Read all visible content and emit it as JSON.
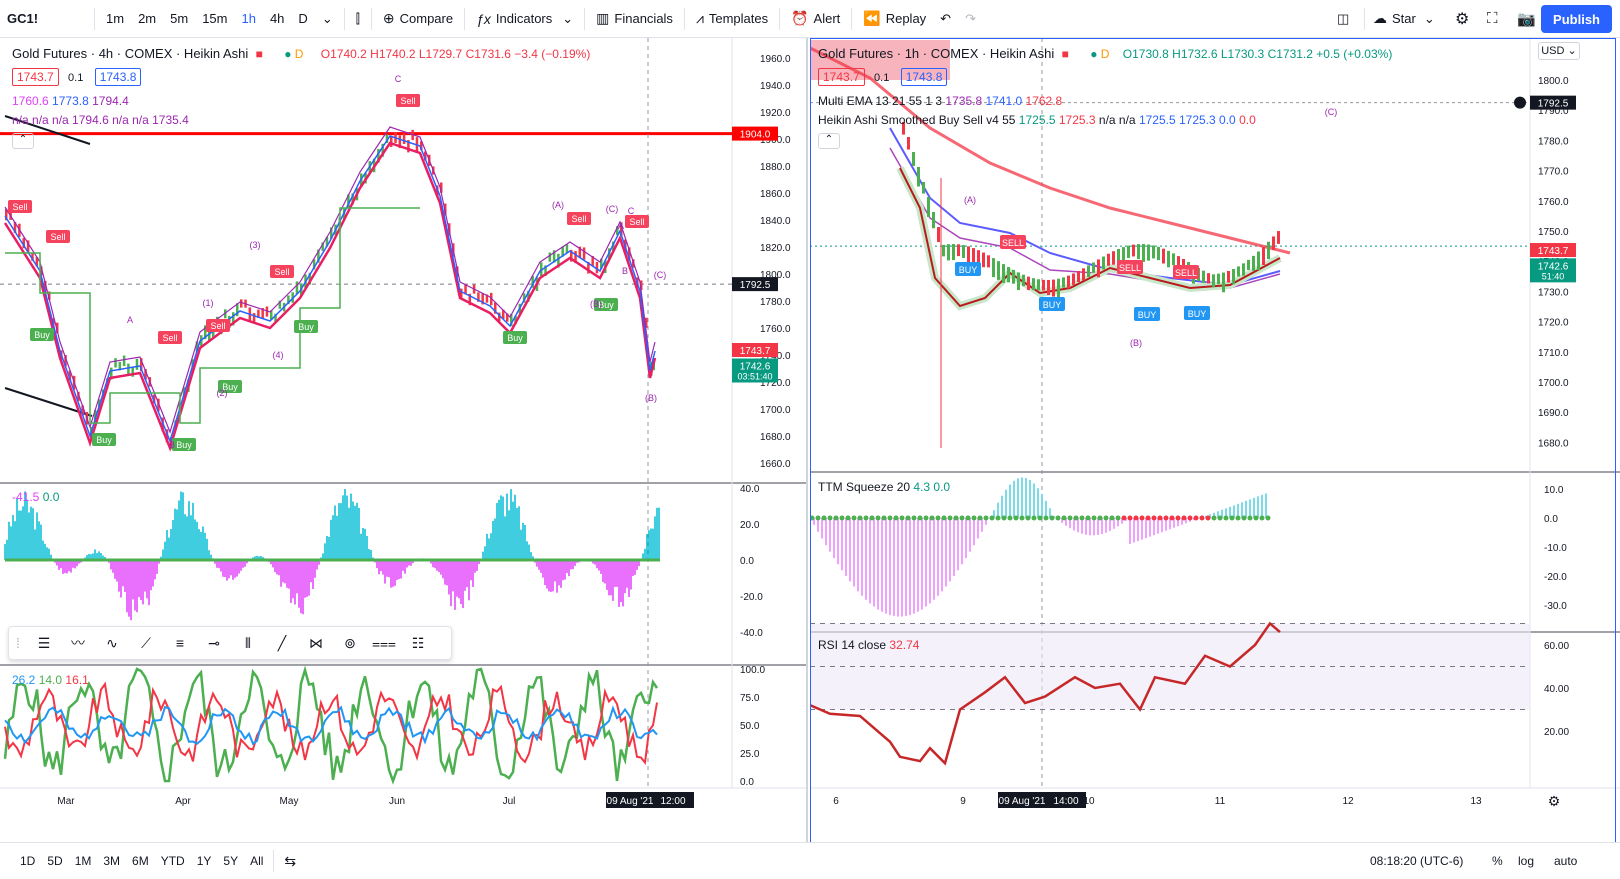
{
  "toolbar": {
    "symbol": "GC1!",
    "intervals": [
      "1m",
      "2m",
      "5m",
      "15m",
      "1h",
      "4h",
      "D"
    ],
    "active_interval": "1h",
    "compare": "Compare",
    "indicators": "Indicators",
    "financials": "Financials",
    "templates": "Templates",
    "alert": "Alert",
    "replay": "Replay",
    "star": "Star",
    "publish": "Publish"
  },
  "left_chart": {
    "title": "Gold Futures · 4h · COMEX · Heikin Ashi",
    "ohlc": "O1740.2 H1740.2 L1729.7 C1731.6 −3.4 (−0.19%)",
    "bid": "1743.7",
    "spread": "0.1",
    "ask": "1743.8",
    "ind1": [
      "1760.6",
      "1773.8",
      "1794.4"
    ],
    "ind2": "n/a n/a n/a 1794.6 n/a n/a 1735.4",
    "price_ticks": [
      "1960.0",
      "1940.0",
      "1920.0",
      "1900.0",
      "1880.0",
      "1860.0",
      "1840.0",
      "1820.0",
      "1800.0",
      "1780.0",
      "1760.0",
      "1740.0",
      "1720.0",
      "1700.0",
      "1680.0",
      "1660.0"
    ],
    "level_red": "1904.0",
    "level_dash": "1792.5",
    "last_price": "1743.7",
    "last_close": "1742.6",
    "countdown": "03:51:40",
    "osc1_values": [
      "-41.5",
      "0.0"
    ],
    "osc1_ticks": [
      "40.0",
      "20.0",
      "0.0",
      "-20.0",
      "-40.0"
    ],
    "osc2_values": [
      "26.2",
      "14.0",
      "16.1"
    ],
    "osc2_ticks": [
      "100.0",
      "75.0",
      "50.0",
      "25.0",
      "0.0"
    ],
    "x_labels": [
      "Mar",
      "Apr",
      "May",
      "Jun",
      "Jul"
    ],
    "x_cursor": "09 Aug '21",
    "x_cursor_time": "12:00",
    "signals": [
      "Sell",
      "Sell",
      "Buy",
      "Buy",
      "Sell",
      "Sell",
      "Buy",
      "Buy",
      "Sell",
      "Buy",
      "Sell",
      "Buy",
      "Sell",
      "Sell",
      "Buy",
      "Sell"
    ],
    "waves": [
      "(1)",
      "(2)",
      "(3)",
      "(4)",
      "A",
      "B",
      "C",
      "(A)",
      "(B)",
      "(C)",
      "A",
      "B",
      "C",
      "(B)",
      "(C)"
    ]
  },
  "right_chart": {
    "title": "Gold Futures · 1h · COMEX · Heikin Ashi",
    "ohlc": "O1730.8 H1732.6 L1730.3 C1731.2 +0.5 (+0.03%)",
    "bid": "1743.7",
    "spread": "0.1",
    "ask": "1743.8",
    "ema_label": "Multi EMA 13 21 55 1 3",
    "ema_values": [
      "1735.8",
      "1741.0",
      "1762.8"
    ],
    "ha_label": "Heikin Ashi Smoothed Buy Sell v4 55",
    "ha_values": [
      "1725.5",
      "1725.3",
      "n/a n/a",
      "1725.5",
      "1725.3",
      "0.0",
      "0.0"
    ],
    "currency": "USD",
    "price_ticks": [
      "1800.0",
      "1790.0",
      "1780.0",
      "1770.0",
      "1760.0",
      "1750.0",
      "1740.0",
      "1730.0",
      "1720.0",
      "1710.0",
      "1700.0",
      "1690.0",
      "1680.0"
    ],
    "level_dash": "1792.5",
    "last_price": "1743.7",
    "last_close": "1742.6",
    "countdown": "51:40",
    "ttm_label": "TTM Squeeze 20",
    "ttm_values": [
      "4.3",
      "0.0"
    ],
    "ttm_ticks": [
      "10.0",
      "0.0",
      "-10.0",
      "-20.0",
      "-30.0"
    ],
    "rsi_label": "RSI 14 close",
    "rsi_value": "32.74",
    "rsi_ticks": [
      "60.00",
      "40.00",
      "20.00"
    ],
    "x_labels": [
      "6",
      "9",
      "10",
      "11",
      "12",
      "13"
    ],
    "x_cursor": "09 Aug '21",
    "x_cursor_time": "14:00",
    "signals": [
      "SELL",
      "BUY",
      "BUY",
      "SELL",
      "BUY",
      "SELL",
      "BUY"
    ],
    "waves": [
      "(A)",
      "(B)",
      "(C)"
    ]
  },
  "bottom": {
    "ranges": [
      "1D",
      "5D",
      "1M",
      "3M",
      "6M",
      "YTD",
      "1Y",
      "5Y",
      "All"
    ],
    "time": "08:18:20 (UTC-6)",
    "percent": "%",
    "log": "log",
    "auto": "auto"
  },
  "colors": {
    "accent": "#2962ff",
    "red": "#f23645",
    "green": "#089981",
    "sell": "#f5425d",
    "buy": "#4caf50"
  }
}
